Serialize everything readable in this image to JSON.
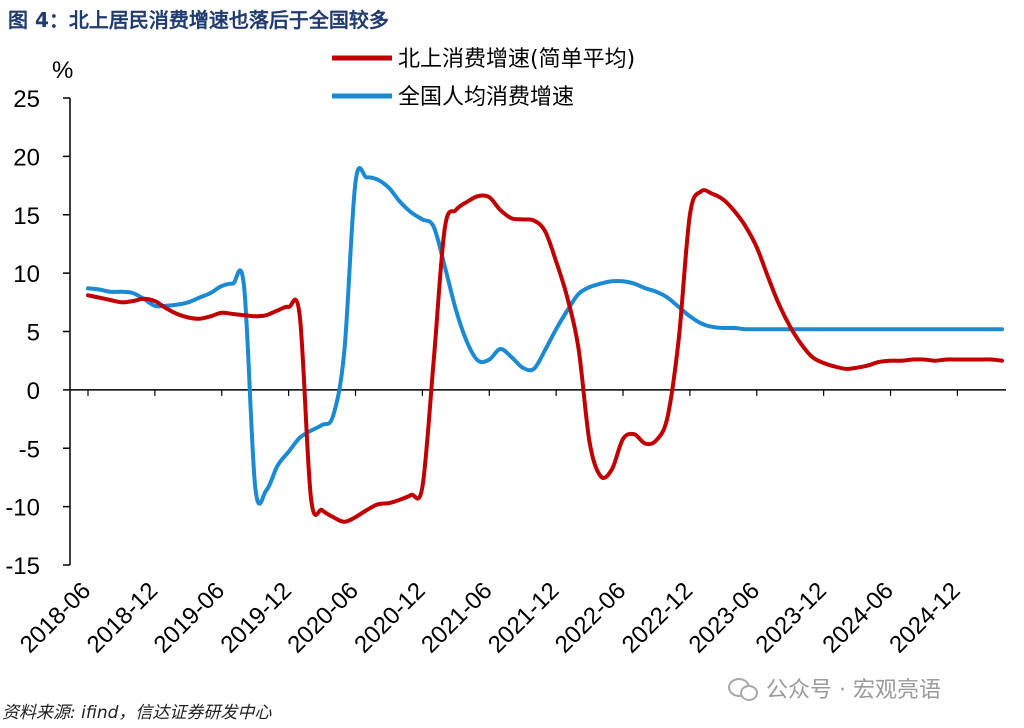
{
  "figure_title": "图  4：北上居民消费增速也落后于全国较多",
  "source_note": "资料来源: ifind，信达证券研发中心",
  "watermark": "公众号 · 宏观亮语",
  "colors": {
    "series_red": "#c00000",
    "series_blue": "#1b8ad3",
    "title_blue": "#1f3b70"
  },
  "chart_data": {
    "type": "line",
    "unit": "%",
    "ylim": [
      -15,
      25
    ],
    "yticks": [
      25,
      20,
      15,
      10,
      5,
      0,
      -5,
      -10,
      -15
    ],
    "x_tick_labels": [
      "2018-06",
      "2018-12",
      "2019-06",
      "2019-12",
      "2020-06",
      "2020-12",
      "2021-06",
      "2021-12",
      "2022-06",
      "2022-12",
      "2023-06",
      "2023-12",
      "2024-06",
      "2024-12"
    ],
    "x_tick_positions": [
      0,
      6,
      12,
      18,
      24,
      30,
      36,
      42,
      48,
      54,
      60,
      66,
      72,
      78
    ],
    "x_range": [
      0,
      82
    ],
    "legend_position": "top",
    "series": [
      {
        "name": "北上消费增速(简单平均)",
        "color": "#c00000",
        "x": [
          0,
          1,
          2,
          3,
          4,
          5,
          6,
          7,
          8,
          9,
          10,
          11,
          12,
          13,
          14,
          15,
          16,
          17,
          18,
          19,
          20,
          21,
          22,
          23,
          24,
          25,
          26,
          27,
          28,
          29,
          30,
          31,
          32,
          33,
          34,
          35,
          36,
          37,
          38,
          39,
          40,
          41,
          42,
          43,
          44,
          45,
          46,
          47,
          48,
          49,
          50,
          51,
          52,
          53,
          54,
          55,
          56,
          57,
          58,
          59,
          60,
          61,
          62,
          63,
          64,
          65,
          66,
          67,
          68,
          69,
          70,
          71,
          72,
          73,
          74,
          75,
          76,
          77,
          78,
          79,
          80,
          81,
          82
        ],
        "y": [
          8.1,
          7.9,
          7.7,
          7.5,
          7.6,
          7.8,
          7.6,
          7.0,
          6.5,
          6.2,
          6.1,
          6.3,
          6.6,
          6.5,
          6.4,
          6.3,
          6.4,
          6.8,
          7.1,
          6.3,
          -9.2,
          -10.3,
          -10.9,
          -11.3,
          -10.9,
          -10.3,
          -9.8,
          -9.7,
          -9.4,
          -9.0,
          -8.3,
          2.3,
          13.8,
          15.4,
          16.1,
          16.6,
          16.5,
          15.4,
          14.7,
          14.6,
          14.5,
          13.6,
          11.0,
          7.9,
          3.6,
          -4.5,
          -7.4,
          -6.8,
          -4.2,
          -3.8,
          -4.6,
          -4.3,
          -2.3,
          4.4,
          15.0,
          17.0,
          16.8,
          16.3,
          15.3,
          14.0,
          12.2,
          9.7,
          7.3,
          5.4,
          3.9,
          2.8,
          2.3,
          2.0,
          1.8,
          1.9,
          2.1,
          2.4,
          2.5,
          2.5,
          2.6,
          2.6,
          2.5,
          2.6,
          2.6,
          2.6,
          2.6,
          2.6,
          2.5
        ]
      },
      {
        "name": "全国人均消费增速",
        "color": "#1b8ad3",
        "x": [
          0,
          1,
          2,
          3,
          4,
          5,
          6,
          7,
          8,
          9,
          10,
          11,
          12,
          13,
          14,
          15,
          16,
          17,
          18,
          19,
          20,
          21,
          22,
          23,
          24,
          25,
          26,
          27,
          28,
          29,
          30,
          31,
          32,
          33,
          34,
          35,
          36,
          37,
          38,
          39,
          40,
          41,
          42,
          43,
          44,
          45,
          46,
          47,
          48,
          49,
          50,
          51,
          52,
          53,
          54,
          55,
          56,
          57,
          58,
          59,
          60,
          61,
          62,
          63,
          64,
          65,
          66,
          67,
          68,
          69,
          70,
          71,
          72,
          73,
          74,
          75,
          76,
          77,
          78,
          79,
          80,
          81,
          82
        ],
        "y": [
          8.7,
          8.6,
          8.4,
          8.4,
          8.3,
          7.8,
          7.2,
          7.2,
          7.3,
          7.5,
          7.9,
          8.3,
          8.9,
          9.1,
          8.9,
          -8.3,
          -8.6,
          -6.5,
          -5.3,
          -4.1,
          -3.5,
          -3.0,
          -2.2,
          3.4,
          17.8,
          18.2,
          18.0,
          17.3,
          16.1,
          15.2,
          14.6,
          14.0,
          10.6,
          6.9,
          4.1,
          2.5,
          2.6,
          3.5,
          2.8,
          1.9,
          1.8,
          3.4,
          5.2,
          6.8,
          8.2,
          8.8,
          9.1,
          9.3,
          9.3,
          9.1,
          8.7,
          8.4,
          7.9,
          7.1,
          6.3,
          5.7,
          5.4,
          5.3,
          5.3,
          5.2,
          5.2,
          5.2,
          5.2,
          5.2,
          5.2,
          5.2,
          5.2,
          5.2,
          5.2,
          5.2,
          5.2,
          5.2,
          5.2,
          5.2,
          5.2,
          5.2,
          5.2,
          5.2,
          5.2,
          5.2,
          5.2,
          5.2,
          5.2
        ]
      }
    ]
  }
}
